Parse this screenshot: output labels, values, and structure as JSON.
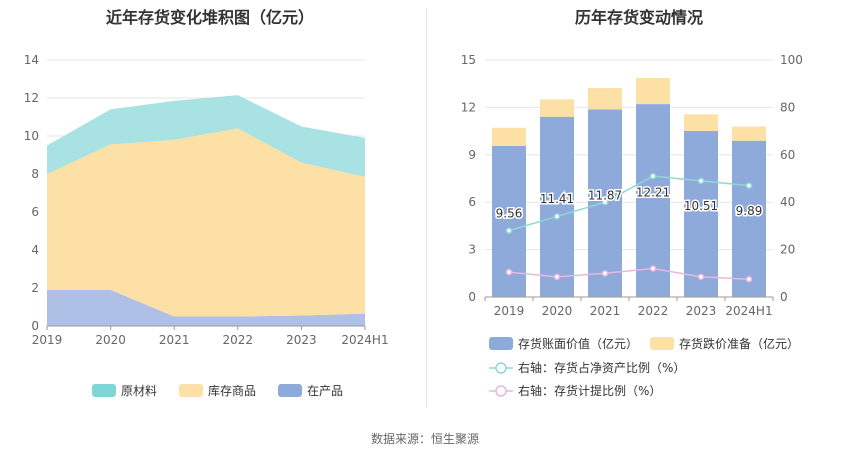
{
  "left_chart": {
    "title": "近年存货变化堆积图（亿元）",
    "legend": [
      {
        "label": "原材料",
        "color": "#7fd6d6"
      },
      {
        "label": "库存商品",
        "color": "#fde0a6"
      },
      {
        "label": "在产品",
        "color": "#8eaadb"
      }
    ]
  },
  "right_chart": {
    "title": "历年存货变动情况",
    "legend": [
      {
        "label": "存货账面价值（亿元）",
        "color": "#8eaadb"
      },
      {
        "label": "存货跌价准备（亿元）",
        "color": "#fde0a6"
      },
      {
        "label": "右轴：存货占净资产比例（%）",
        "color": "#8ed8d8"
      },
      {
        "label": "右轴：存货计提比例（%）",
        "color": "#e6b8e0"
      }
    ]
  },
  "source_text": "数据来源：恒生聚源",
  "chart_data": [
    {
      "type": "area",
      "stacked": true,
      "title": "近年存货变化堆积图（亿元）",
      "categories": [
        "2019",
        "2020",
        "2021",
        "2022",
        "2023",
        "2024H1"
      ],
      "ylim": [
        0,
        14
      ],
      "yticks": [
        0,
        2,
        4,
        6,
        8,
        10,
        12,
        14
      ],
      "series": [
        {
          "name": "在产品",
          "color": "#aec0e6",
          "values": [
            1.9,
            1.9,
            0.5,
            0.5,
            0.55,
            0.65
          ]
        },
        {
          "name": "库存商品",
          "color": "#fde0a6",
          "values": [
            6.1,
            7.65,
            9.3,
            9.9,
            8.05,
            7.2
          ]
        },
        {
          "name": "原材料",
          "color": "#a8e2e2",
          "values": [
            1.5,
            1.85,
            2.05,
            1.75,
            1.9,
            2.05
          ]
        }
      ],
      "legend_position": "bottom"
    },
    {
      "type": "bar",
      "stacked": true,
      "title": "历年存货变动情况",
      "categories": [
        "2019",
        "2020",
        "2021",
        "2022",
        "2023",
        "2024H1"
      ],
      "ylim": [
        0,
        15
      ],
      "yticks": [
        0,
        3,
        6,
        9,
        12,
        15
      ],
      "y2lim": [
        0,
        100
      ],
      "y2ticks": [
        0,
        20,
        40,
        60,
        80,
        100
      ],
      "series": [
        {
          "name": "存货账面价值（亿元）",
          "type": "bar",
          "color": "#8eaadb",
          "values": [
            9.56,
            11.41,
            11.87,
            12.21,
            10.51,
            9.89
          ],
          "labels": [
            "9.56",
            "11.41",
            "11.87",
            "12.21",
            "10.51",
            "9.89"
          ]
        },
        {
          "name": "存货跌价准备（亿元）",
          "type": "bar",
          "color": "#fde0a6",
          "values": [
            1.15,
            1.1,
            1.35,
            1.65,
            1.05,
            0.9
          ]
        },
        {
          "name": "右轴：存货占净资产比例（%）",
          "type": "line",
          "axis": "right",
          "color": "#8ed8d8",
          "values": [
            28,
            34,
            40,
            51,
            49,
            47
          ]
        },
        {
          "name": "右轴：存货计提比例（%）",
          "type": "line",
          "axis": "right",
          "color": "#e6b8e0",
          "values": [
            10.5,
            8.5,
            10,
            12,
            8.5,
            7.5
          ]
        }
      ],
      "legend_position": "bottom"
    }
  ]
}
